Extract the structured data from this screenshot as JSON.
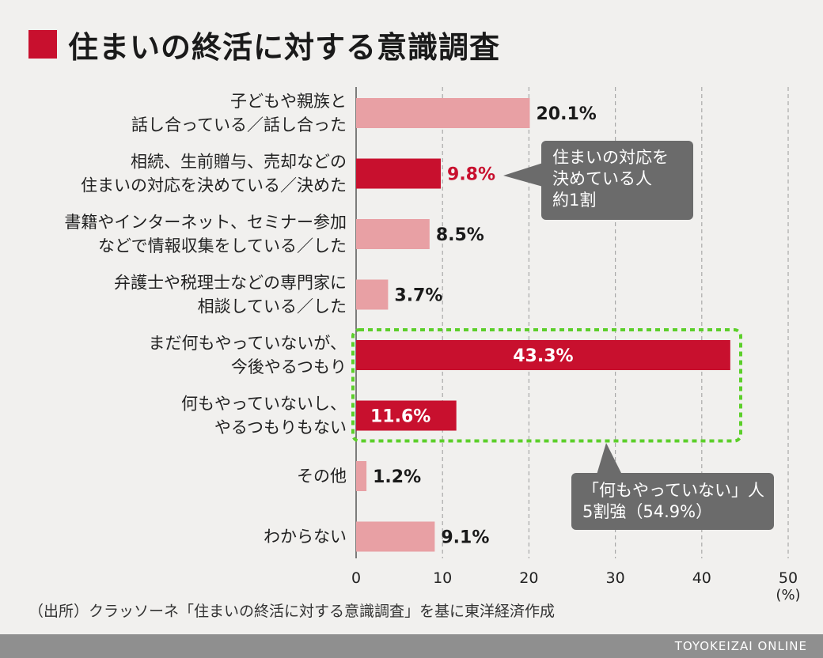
{
  "title": "住まいの終活に対する意識調査",
  "source": "（出所）クラッソーネ「住まいの終活に対する意識調査」を基に東洋経済作成",
  "footer": "TOYOKEIZAI ONLINE",
  "callouts": {
    "decided": [
      "住まいの対応を",
      "決めている人",
      "約1割"
    ],
    "nothing": [
      "「何もやっていない」人",
      "5割強（54.9%）"
    ]
  },
  "colors": {
    "pink": "#e8a0a4",
    "red": "#c8102e",
    "callout": "#6b6b6b",
    "highlight": "#5ccf2a",
    "title_square": "#c8102e"
  },
  "chart_data": {
    "type": "bar",
    "orientation": "horizontal",
    "unit": "(%)",
    "xlim": [
      0,
      50
    ],
    "ticks": [
      0,
      10,
      20,
      30,
      40,
      50
    ],
    "grid": true,
    "categories": [
      [
        "子どもや親族と",
        "話し合っている／話し合った"
      ],
      [
        "相続、生前贈与、売却などの",
        "住まいの対応を決めている／決めた"
      ],
      [
        "書籍やインターネット、セミナー参加",
        "などで情報収集をしている／した"
      ],
      [
        "弁護士や税理士などの専門家に",
        "相談している／した"
      ],
      [
        "まだ何もやっていないが、",
        "今後やるつもり"
      ],
      [
        "何もやっていないし、",
        "やるつもりもない"
      ],
      [
        "その他"
      ],
      [
        "わからない"
      ]
    ],
    "values": [
      20.1,
      9.8,
      8.5,
      3.7,
      43.3,
      11.6,
      1.2,
      9.1
    ],
    "labels": [
      "20.1%",
      "9.8%",
      "8.5%",
      "3.7%",
      "43.3%",
      "11.6%",
      "1.2%",
      "9.1%"
    ],
    "bar_colors": [
      "pink",
      "red",
      "pink",
      "pink",
      "red",
      "red",
      "pink",
      "pink"
    ],
    "label_styles": [
      "outside-dark",
      "outside-red",
      "outside-dark",
      "outside-dark",
      "inside-white",
      "inside-white",
      "outside-dark",
      "outside-dark"
    ],
    "highlighted_bars": [
      4,
      5
    ]
  }
}
